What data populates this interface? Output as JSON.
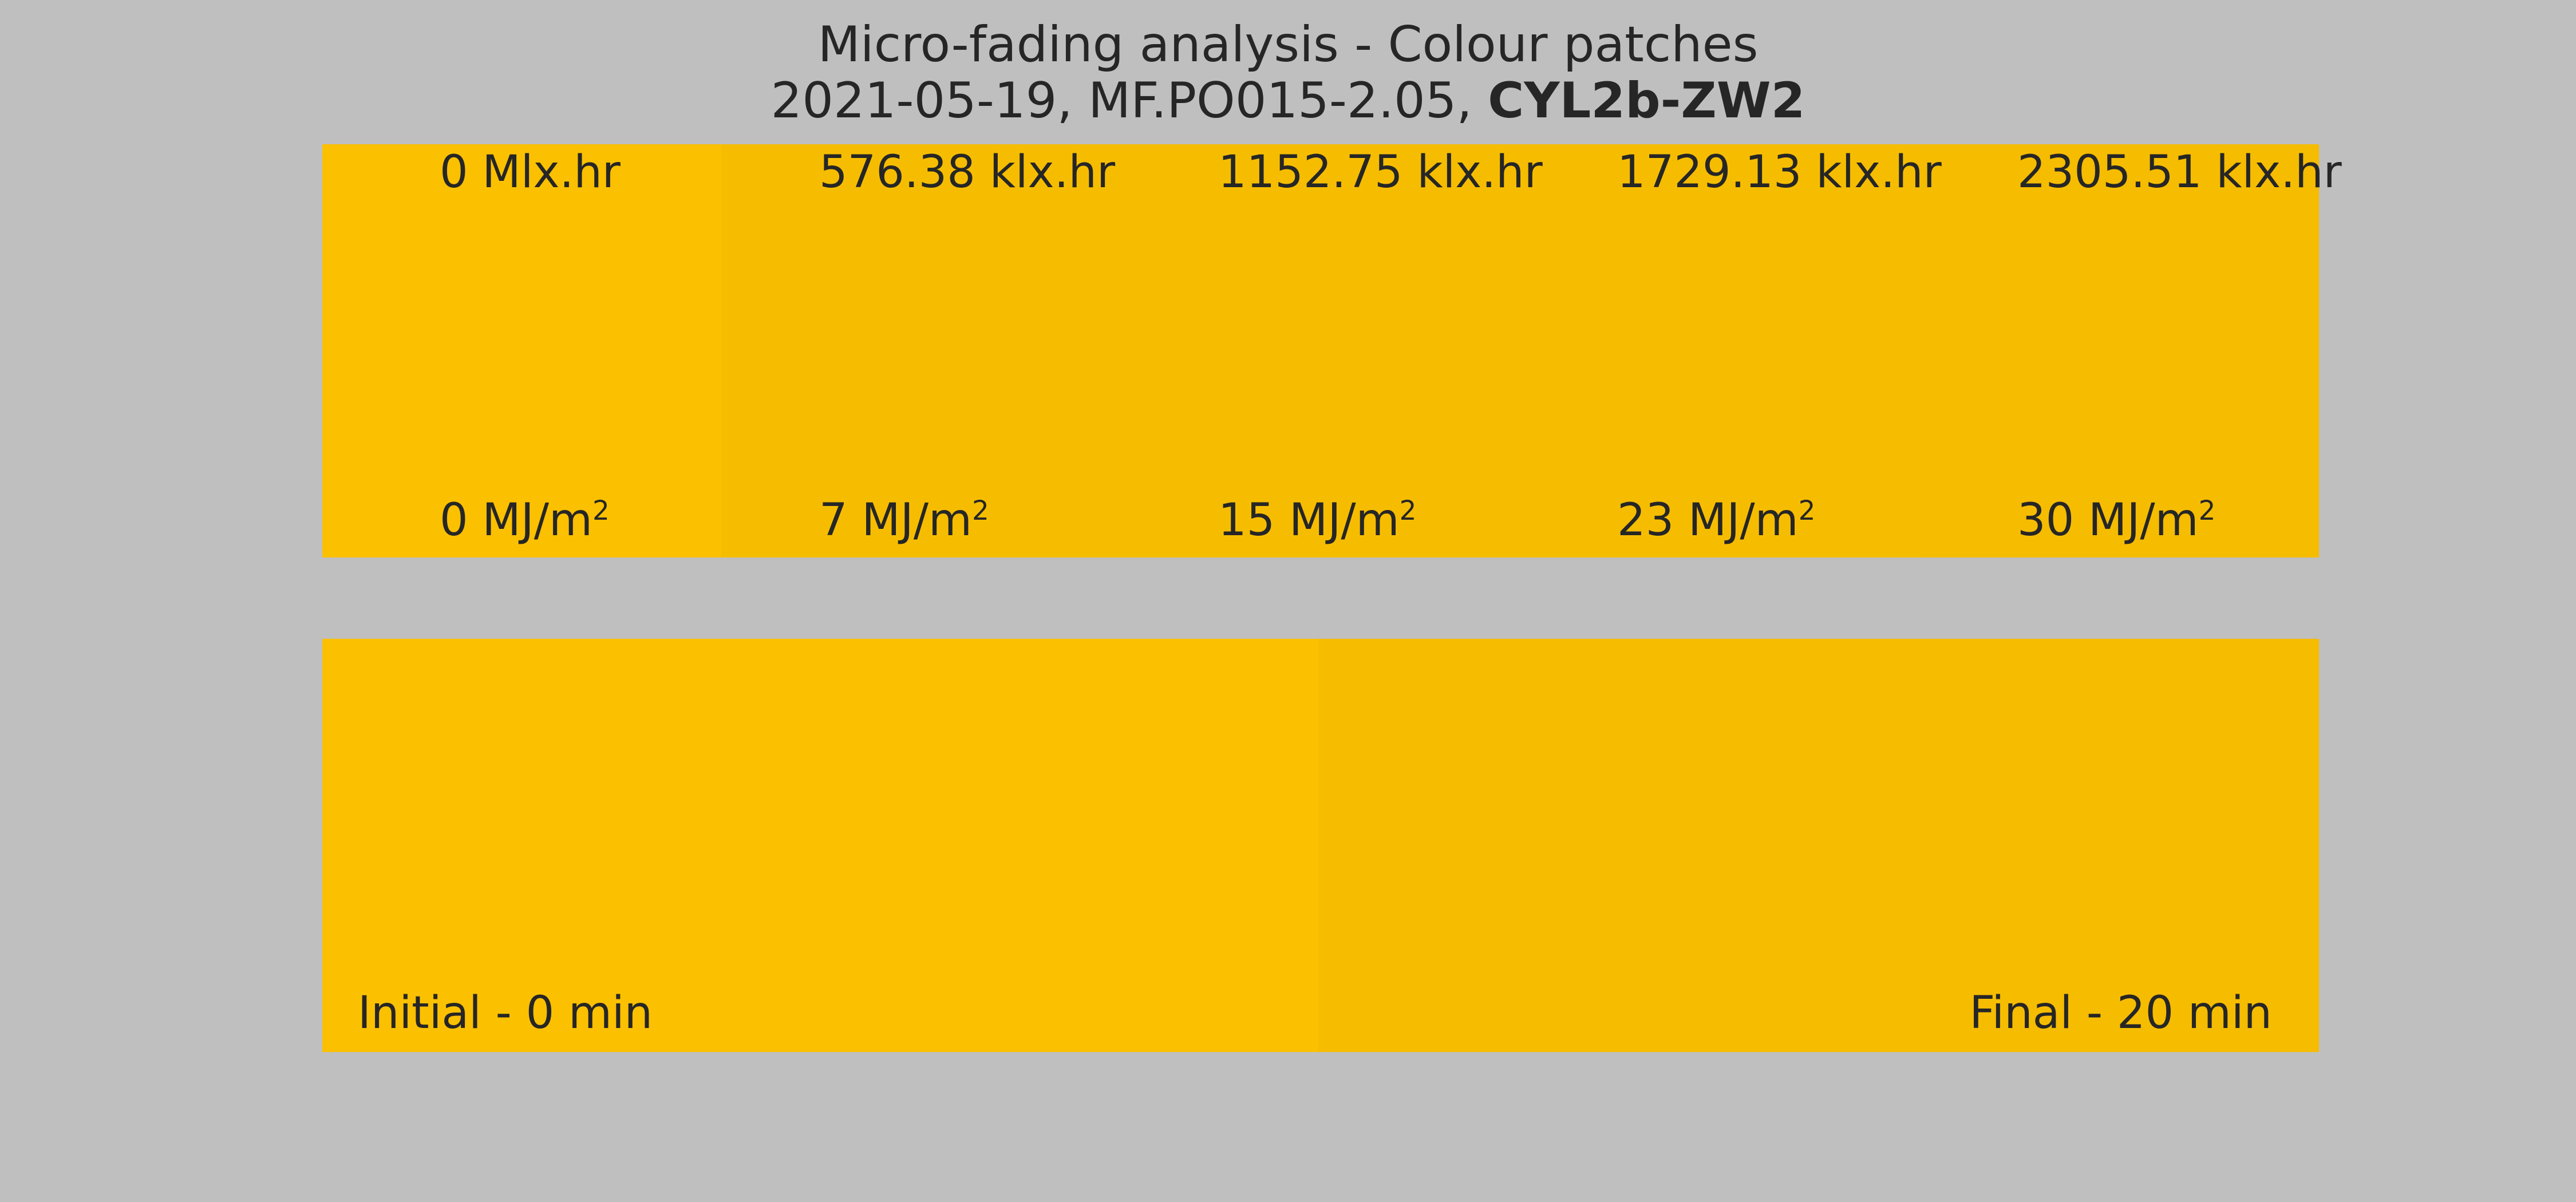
{
  "header": {
    "title_line1": "Micro-fading analysis - Colour patches",
    "subtitle_prefix": "2021-05-19, MF.PO015-2.05, ",
    "subtitle_bold": "CYL2b-ZW2"
  },
  "chart_data": [
    {
      "type": "heatmap",
      "title": "Micro-fading analysis - Colour patches",
      "subtitle": "2021-05-19, MF.PO015-2.05, CYL2b-ZW2",
      "patches": [
        {
          "index": 0,
          "color": "#fbc000",
          "label_top": "0 Mlx.hr",
          "label_bottom_value": "0 MJ/m",
          "label_bottom_sup": "2"
        },
        {
          "index": 1,
          "color": "#f6bd00",
          "label_top": "576.38 klx.hr",
          "label_bottom_value": "7 MJ/m",
          "label_bottom_sup": "2"
        },
        {
          "index": 2,
          "color": "#f6bd00",
          "label_top": "1152.75 klx.hr",
          "label_bottom_value": "15 MJ/m",
          "label_bottom_sup": "2"
        },
        {
          "index": 3,
          "color": "#f6bd00",
          "label_top": "1729.13 klx.hr",
          "label_bottom_value": "23 MJ/m",
          "label_bottom_sup": "2"
        },
        {
          "index": 4,
          "color": "#f5bc00",
          "label_top": "2305.51 klx.hr",
          "label_bottom_value": "30 MJ/m",
          "label_bottom_sup": "2"
        }
      ]
    },
    {
      "type": "heatmap",
      "patches": [
        {
          "index": 0,
          "color": "#fbc000",
          "label": "Initial - 0 min"
        },
        {
          "index": 1,
          "color": "#f5bc00",
          "label": "Final - 20 min"
        }
      ]
    }
  ],
  "colors": {
    "background": "#bfbfbf",
    "text": "#262626"
  }
}
